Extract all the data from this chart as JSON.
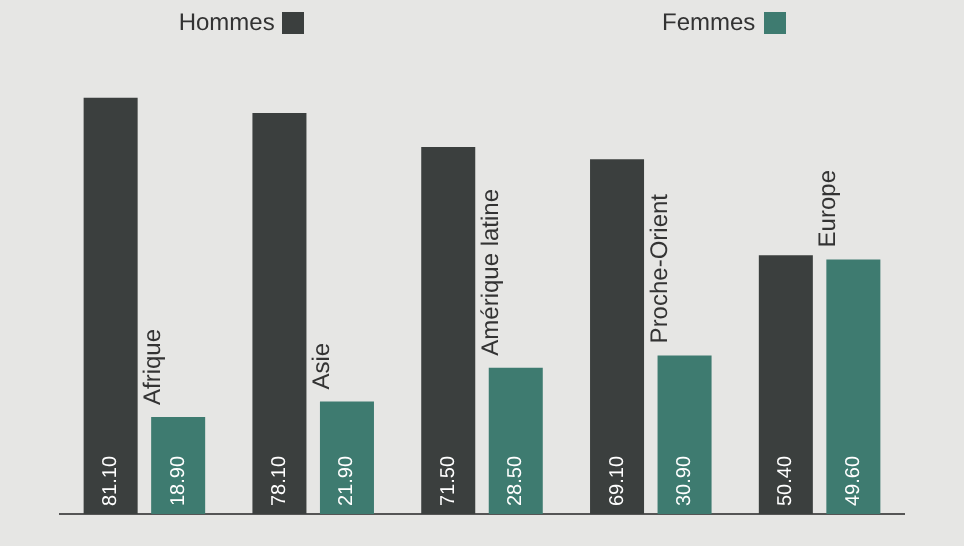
{
  "chart_data": {
    "type": "bar",
    "categories": [
      "Afrique",
      "Asie",
      "Amérique latine",
      "Proche-Orient",
      "Europe"
    ],
    "series": [
      {
        "name": "Hommes",
        "color": "#3b3f3e",
        "values": [
          81.1,
          78.1,
          71.5,
          69.1,
          50.4
        ],
        "value_labels": [
          "81.10",
          "78.10",
          "71.50",
          "69.10",
          "50.40"
        ]
      },
      {
        "name": "Femmes",
        "color": "#3e7b70",
        "values": [
          18.9,
          21.9,
          28.5,
          30.9,
          49.6
        ],
        "value_labels": [
          "18.90",
          "21.90",
          "28.50",
          "30.90",
          "49.60"
        ]
      }
    ],
    "legend": "top",
    "grid": false,
    "tick_labels": false
  }
}
